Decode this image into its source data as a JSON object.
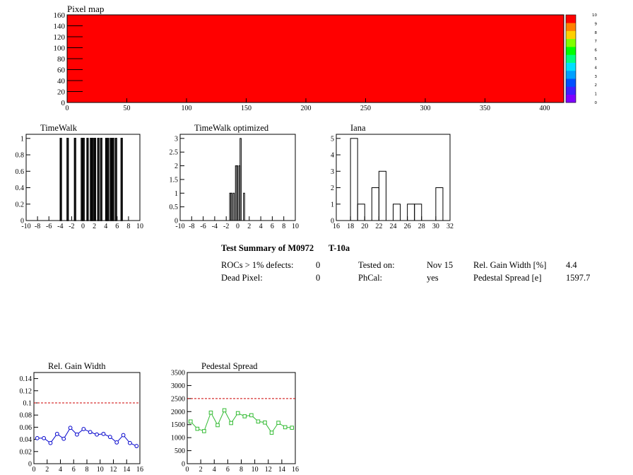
{
  "pixel_map": {
    "title": "Pixel map",
    "x_ticks": [
      "0",
      "50",
      "100",
      "150",
      "200",
      "250",
      "300",
      "350",
      "400"
    ],
    "y_ticks": [
      "0",
      "20",
      "40",
      "60",
      "80",
      "100",
      "120",
      "140",
      "160"
    ],
    "xlim": [
      0,
      416
    ],
    "ylim": [
      0,
      160
    ],
    "fill_value": 10,
    "palette_ticks": [
      "0",
      "1",
      "2",
      "3",
      "4",
      "5",
      "6",
      "7",
      "8",
      "9",
      "10"
    ],
    "palette_colors": [
      "#7f00ff",
      "#3f1fff",
      "#0050ff",
      "#00a0ff",
      "#00e0ff",
      "#00ff80",
      "#00ff00",
      "#80ff00",
      "#ffd000",
      "#ff8000",
      "#ff0000"
    ]
  },
  "chart_data": [
    {
      "type": "bar",
      "title": "TimeWalk",
      "xlim": [
        -10,
        10
      ],
      "ylim": [
        0,
        1.05
      ],
      "x_ticks": [
        "-10",
        "-8",
        "-6",
        "-4",
        "-2",
        "0",
        "2",
        "4",
        "6",
        "8",
        "10"
      ],
      "y_ticks": [
        "0",
        "0.2",
        "0.4",
        "0.6",
        "0.8",
        "1"
      ],
      "bins": [
        [
          -4.0,
          -3.8
        ],
        [
          -2.8,
          -2.6
        ],
        [
          -1.5,
          -1.3
        ],
        [
          -0.3,
          -0.1
        ],
        [
          0.0,
          0.2
        ],
        [
          0.7,
          0.9
        ],
        [
          1.3,
          1.5
        ],
        [
          1.6,
          1.8
        ],
        [
          2.0,
          2.2
        ],
        [
          2.6,
          2.8
        ],
        [
          3.1,
          3.3
        ],
        [
          4.0,
          4.2
        ],
        [
          4.3,
          4.5
        ],
        [
          4.8,
          5.0
        ],
        [
          5.2,
          5.4
        ],
        [
          5.7,
          5.9
        ],
        [
          6.7,
          6.9
        ]
      ],
      "values": [
        1,
        1,
        1,
        1,
        1,
        1,
        1,
        1,
        1,
        1,
        1,
        1,
        1,
        1,
        1,
        1,
        1
      ]
    },
    {
      "type": "bar",
      "title": "TimeWalk optimized",
      "xlim": [
        -10,
        10
      ],
      "ylim": [
        0,
        3.15
      ],
      "x_ticks": [
        "-10",
        "-8",
        "-6",
        "-4",
        "-2",
        "0",
        "2",
        "4",
        "6",
        "8",
        "10"
      ],
      "y_ticks": [
        "0",
        "0.5",
        "1",
        "1.5",
        "2",
        "2.5",
        "3"
      ],
      "bins": [
        [
          -1.4,
          -1.2
        ],
        [
          -1.2,
          -1.0
        ],
        [
          -0.8,
          -0.6
        ],
        [
          -0.4,
          -0.2
        ],
        [
          -0.2,
          0.0
        ],
        [
          0.2,
          0.4
        ],
        [
          0.4,
          0.6
        ],
        [
          1.0,
          1.2
        ]
      ],
      "values": [
        1,
        1,
        1,
        2,
        2,
        2,
        3,
        1
      ]
    },
    {
      "type": "bar",
      "title": "Iana",
      "xlim": [
        16,
        32
      ],
      "ylim": [
        0,
        5.25
      ],
      "x_ticks": [
        "16",
        "18",
        "20",
        "22",
        "24",
        "26",
        "28",
        "30",
        "32"
      ],
      "y_ticks": [
        "0",
        "1",
        "2",
        "3",
        "4",
        "5"
      ],
      "bins": [
        [
          18,
          19
        ],
        [
          19,
          20
        ],
        [
          21,
          22
        ],
        [
          22,
          23
        ],
        [
          24,
          25
        ],
        [
          26,
          27
        ],
        [
          27,
          28
        ],
        [
          30,
          31
        ]
      ],
      "values": [
        5,
        1,
        2,
        3,
        1,
        1,
        1,
        2
      ]
    },
    {
      "type": "line",
      "title": "Rel. Gain Width",
      "xlim": [
        0,
        16
      ],
      "ylim": [
        0,
        0.15
      ],
      "x_ticks": [
        "0",
        "2",
        "4",
        "6",
        "8",
        "10",
        "12",
        "14",
        "16"
      ],
      "y_ticks": [
        "0",
        "0.02",
        "0.04",
        "0.06",
        "0.08",
        "0.1",
        "0.12",
        "0.14"
      ],
      "x": [
        0,
        1,
        2,
        3,
        4,
        5,
        6,
        7,
        8,
        9,
        10,
        11,
        12,
        13,
        14,
        15
      ],
      "values": [
        0.042,
        0.042,
        0.034,
        0.049,
        0.041,
        0.059,
        0.048,
        0.057,
        0.052,
        0.048,
        0.049,
        0.044,
        0.035,
        0.047,
        0.034,
        0.029
      ],
      "reference": 0.1,
      "color": "#0000cc",
      "marker": "circle"
    },
    {
      "type": "line",
      "title": "Pedestal Spread",
      "xlim": [
        0,
        16
      ],
      "ylim": [
        0,
        3500
      ],
      "x_ticks": [
        "0",
        "2",
        "4",
        "6",
        "8",
        "10",
        "12",
        "14",
        "16"
      ],
      "y_ticks": [
        "0",
        "500",
        "1000",
        "1500",
        "2000",
        "2500",
        "3000",
        "3500"
      ],
      "x": [
        0,
        1,
        2,
        3,
        4,
        5,
        6,
        7,
        8,
        9,
        10,
        11,
        12,
        13,
        14,
        15
      ],
      "values": [
        1620,
        1340,
        1250,
        1960,
        1480,
        2050,
        1560,
        1940,
        1820,
        1860,
        1620,
        1580,
        1190,
        1570,
        1400,
        1380
      ],
      "reference": 2500,
      "color": "#33bb33",
      "marker": "square"
    }
  ],
  "summary": {
    "title_module": "Test Summary of M0972",
    "title_test": "T-10a",
    "rows": [
      [
        "ROCs > 1% defects:",
        "0",
        "Tested on:",
        "Nov 15",
        "Rel. Gain Width [%]",
        "4.4"
      ],
      [
        "Dead Pixel:",
        "0",
        "PhCal:",
        "yes",
        "Pedestal Spread [e]",
        "1597.7"
      ]
    ]
  }
}
